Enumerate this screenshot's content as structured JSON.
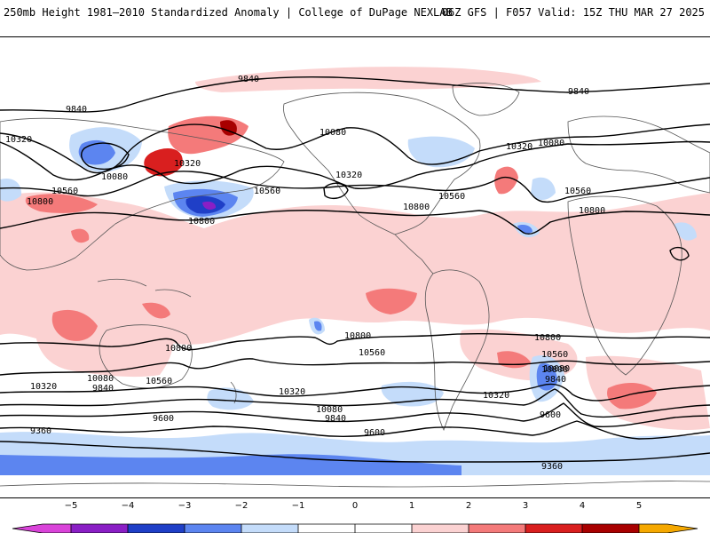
{
  "header": {
    "title": "250mb Height 1981–2010 Standardized Anomaly | College of DuPage NEXLAB",
    "run_info": "06Z GFS | F057 Valid: 15Z THU MAR 27 2025"
  },
  "colors": {
    "anom_neg5": "#d943d9",
    "anom_neg4": "#8a1fc5",
    "anom_neg3": "#1f3fc7",
    "anom_neg2": "#5c85f0",
    "anom_neg1": "#c4dcfa",
    "anom_pos1": "#fbd2d2",
    "anom_pos2": "#f47a7a",
    "anom_pos3": "#d91f1f",
    "anom_pos4": "#a80000",
    "anom_pos5": "#f5a800",
    "land_outline": "#555555",
    "contour": "#000000"
  },
  "contour_labels": {
    "l9840a": "9840",
    "l9840b": "9840",
    "l9840c": "9840",
    "l10320a": "10320",
    "l10320b": "10320",
    "l10320c": "10320",
    "l10320d": "10320",
    "l10080a": "10080",
    "l10080b": "10080",
    "l10080c": "10080",
    "l10560a": "10560",
    "l10560b": "10560",
    "l10560c": "10560",
    "l10560d": "10560",
    "l10800a": "10800",
    "l10800b": "10800",
    "l10800c": "10800",
    "l10800d": "10800",
    "s10800a": "10800",
    "s10800b": "10800",
    "s10800c": "10800",
    "s10800d": "10800",
    "s10560a": "10560",
    "s10560b": "10560",
    "s10560c": "10560",
    "s10320a": "10320",
    "s10320b": "10320",
    "s10320c": "10320",
    "s10080a": "10080",
    "s10080b": "10080",
    "s10080c": "10080",
    "s9840a": "9840",
    "s9840b": "9840",
    "s9840c": "9840",
    "s9600a": "9600",
    "s9600b": "9600",
    "s9600c": "9600",
    "s9360a": "9360",
    "s9360b": "9360"
  },
  "colorbar": {
    "ticks": [
      "−5",
      "−4",
      "−3",
      "−2",
      "−1",
      "0",
      "1",
      "2",
      "3",
      "4",
      "5"
    ]
  }
}
